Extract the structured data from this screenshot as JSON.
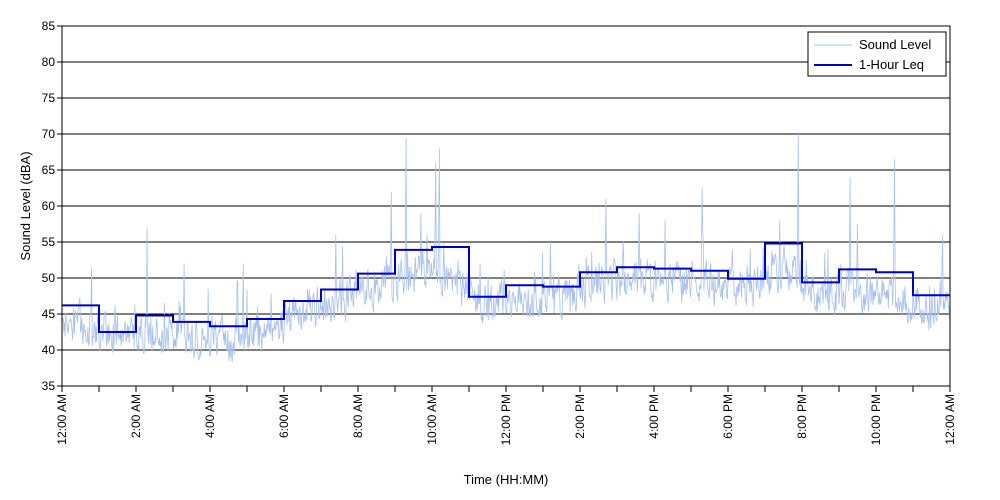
{
  "chart_data": {
    "type": "line",
    "title": "",
    "xlabel": "Time (HH:MM)",
    "ylabel": "Sound Level (dBA)",
    "xlim": [
      0,
      24
    ],
    "ylim": [
      35,
      85
    ],
    "y_ticks": [
      35,
      40,
      45,
      50,
      55,
      60,
      65,
      70,
      75,
      80,
      85
    ],
    "x_ticks": [
      {
        "h": 0,
        "label": "12:00 AM"
      },
      {
        "h": 2,
        "label": "2:00 AM"
      },
      {
        "h": 4,
        "label": "4:00 AM"
      },
      {
        "h": 6,
        "label": "6:00 AM"
      },
      {
        "h": 8,
        "label": "8:00 AM"
      },
      {
        "h": 10,
        "label": "10:00 AM"
      },
      {
        "h": 12,
        "label": "12:00 PM"
      },
      {
        "h": 14,
        "label": "2:00 PM"
      },
      {
        "h": 16,
        "label": "4:00 PM"
      },
      {
        "h": 18,
        "label": "6:00 PM"
      },
      {
        "h": 20,
        "label": "8:00 PM"
      },
      {
        "h": 22,
        "label": "10:00 PM"
      },
      {
        "h": 24,
        "label": "12:00 AM"
      }
    ],
    "minor_x_ticks_hours": [
      1,
      3,
      5,
      7,
      9,
      11,
      13,
      15,
      17,
      19,
      21,
      23
    ],
    "grid": "horizontal",
    "legend_position": "top-right",
    "series": [
      {
        "name": "Sound Level",
        "color": "#a8c0f0",
        "style": "noisy-trace",
        "baseline_by_hour": [
          43.5,
          42.0,
          42.5,
          41.5,
          41.5,
          42.5,
          45.5,
          47.0,
          48.5,
          50.5,
          49.5,
          46.5,
          47.5,
          47.0,
          49.5,
          50.0,
          49.5,
          49.0,
          48.5,
          51.5,
          47.5,
          48.0,
          47.5,
          45.5
        ],
        "spikes": [
          {
            "h": 0.8,
            "v": 51.5
          },
          {
            "h": 2.3,
            "v": 57.0
          },
          {
            "h": 3.3,
            "v": 52.0
          },
          {
            "h": 4.9,
            "v": 52.0
          },
          {
            "h": 7.4,
            "v": 56.0
          },
          {
            "h": 8.9,
            "v": 62.0
          },
          {
            "h": 9.3,
            "v": 69.5
          },
          {
            "h": 9.7,
            "v": 59.0
          },
          {
            "h": 10.1,
            "v": 66.0
          },
          {
            "h": 10.2,
            "v": 68.0
          },
          {
            "h": 11.3,
            "v": 52.0
          },
          {
            "h": 13.2,
            "v": 55.0
          },
          {
            "h": 14.7,
            "v": 61.0
          },
          {
            "h": 15.6,
            "v": 59.0
          },
          {
            "h": 16.3,
            "v": 58.0
          },
          {
            "h": 17.3,
            "v": 62.5
          },
          {
            "h": 19.4,
            "v": 58.0
          },
          {
            "h": 19.9,
            "v": 70.0
          },
          {
            "h": 21.3,
            "v": 64.0
          },
          {
            "h": 21.5,
            "v": 57.5
          },
          {
            "h": 22.5,
            "v": 66.5
          },
          {
            "h": 23.8,
            "v": 56.0
          }
        ]
      },
      {
        "name": "1-Hour Leq",
        "color": "#0000cc",
        "style": "step",
        "hours": [
          0,
          1,
          2,
          3,
          4,
          5,
          6,
          7,
          8,
          9,
          10,
          11,
          12,
          13,
          14,
          15,
          16,
          17,
          18,
          19,
          20,
          21,
          22,
          23
        ],
        "values": [
          46.2,
          42.5,
          44.8,
          43.9,
          43.3,
          44.3,
          46.8,
          48.4,
          50.6,
          53.9,
          54.3,
          47.4,
          49.0,
          48.8,
          50.8,
          51.5,
          51.3,
          51.0,
          49.9,
          54.8,
          49.4,
          51.2,
          50.8,
          47.6
        ]
      }
    ]
  }
}
